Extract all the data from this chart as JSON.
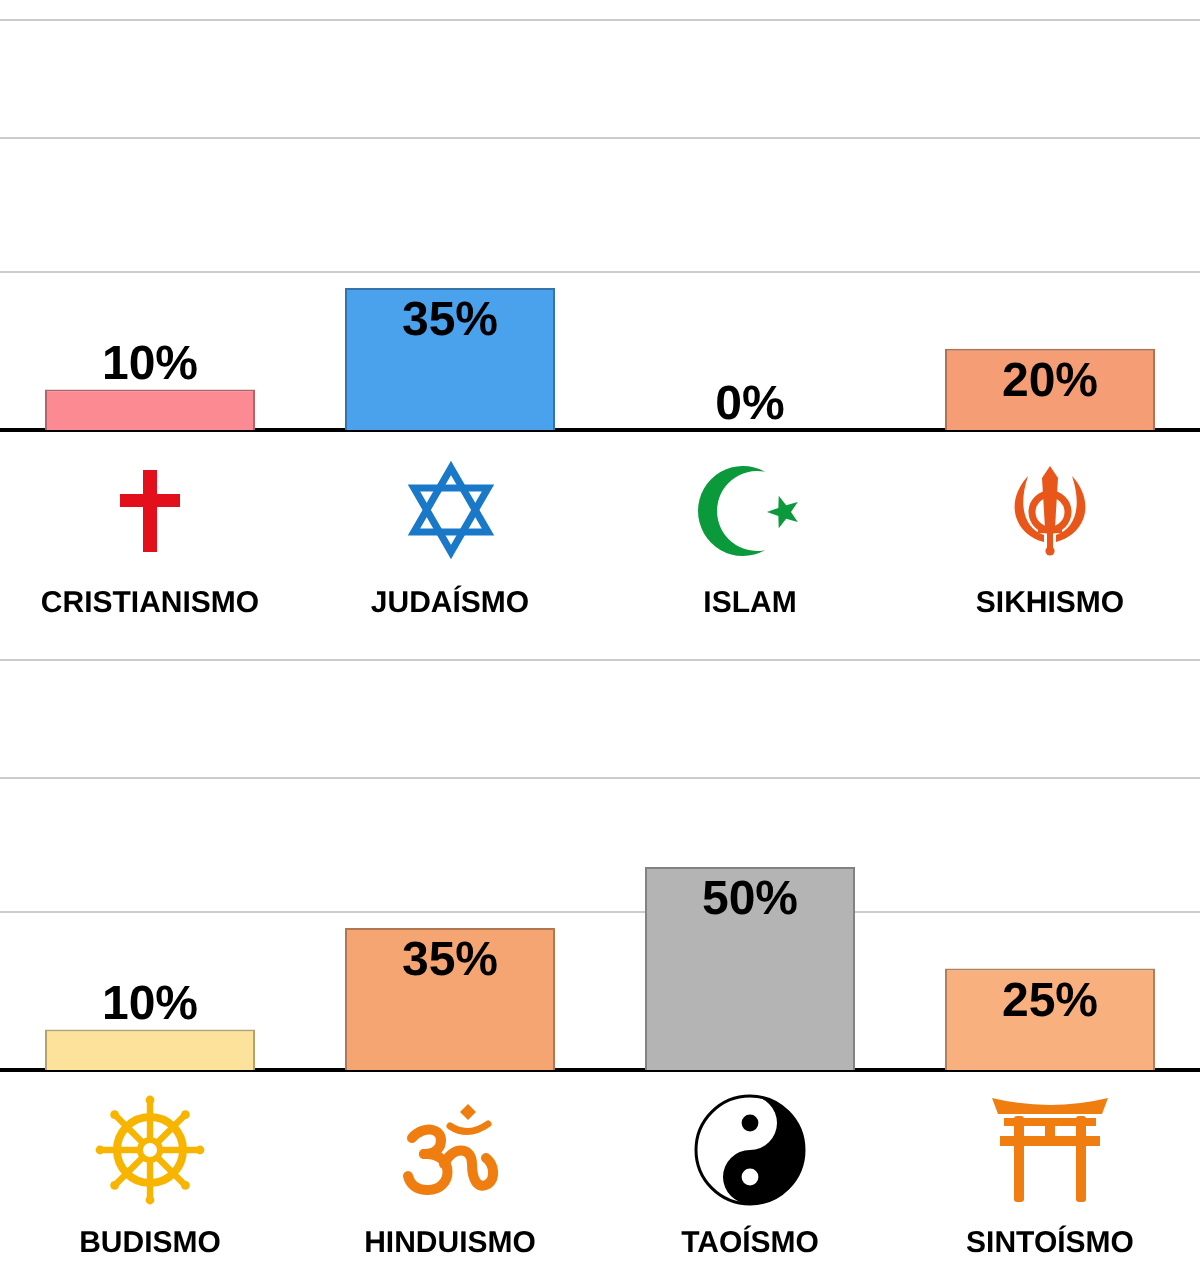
{
  "chart_data": [
    {
      "type": "bar",
      "categories": [
        "CRISTIANISMO",
        "JUDAÍSMO",
        "ISLAM",
        "SIKHISMO"
      ],
      "values": [
        10,
        35,
        0,
        20
      ],
      "colors": [
        "#fb8a93",
        "#4aa1ec",
        null,
        "#f59d74"
      ],
      "value_labels": [
        "10%",
        "35%",
        "0%",
        "20%"
      ],
      "ylim": [
        0,
        101
      ],
      "yticks": [
        {
          "value": 39,
          "label": null
        },
        {
          "value": 72,
          "label": null
        },
        {
          "value": 101,
          "label": null
        }
      ],
      "grid": "y",
      "tick_labels": "x"
    },
    {
      "type": "bar",
      "categories": [
        "BUDISMO",
        "HINDUISMO",
        "TAOÍSMO",
        "SINTOÍSMO"
      ],
      "values": [
        10,
        35,
        50,
        25
      ],
      "colors": [
        "#fce29a",
        "#f4a572",
        "#b4b4b4",
        "#f7b07e"
      ],
      "value_labels": [
        "10%",
        "35%",
        "50%",
        "25%"
      ],
      "ylim": [
        0,
        101
      ],
      "yticks": [
        {
          "value": 39,
          "label": null
        },
        {
          "value": 72,
          "label": null
        },
        {
          "value": 101,
          "label": null
        }
      ],
      "grid": "y",
      "tick_labels": "x"
    }
  ]
}
